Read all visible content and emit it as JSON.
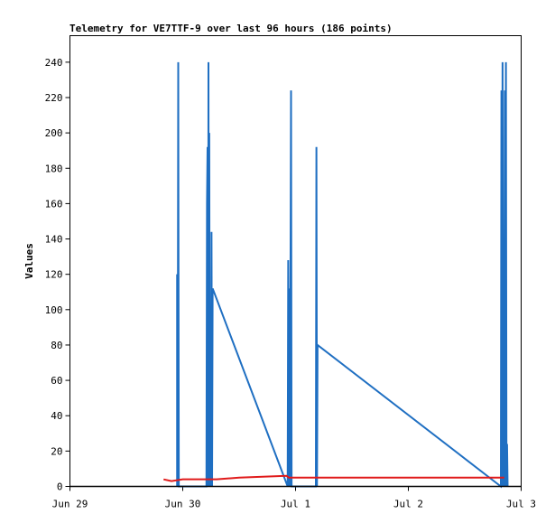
{
  "chart_data": {
    "type": "line",
    "title": "Telemetry for VE7TTF-9 over last 96 hours (186 points)",
    "xlabel": "",
    "ylabel": "Values",
    "xlim": [
      "Jun 29",
      "Jul 3"
    ],
    "ylim": [
      0,
      255
    ],
    "x_ticks": [
      {
        "label": "Jun 29",
        "day": 0
      },
      {
        "label": "Jun 30",
        "day": 1
      },
      {
        "label": "Jul 1",
        "day": 2
      },
      {
        "label": "Jul 2",
        "day": 3
      },
      {
        "label": "Jul 3",
        "day": 4
      }
    ],
    "y_ticks": [
      0,
      20,
      40,
      60,
      80,
      100,
      120,
      140,
      160,
      180,
      200,
      220,
      240
    ],
    "grid": false,
    "legend": "none",
    "series": [
      {
        "color": "#1f6fc2",
        "points": [
          [
            0.95,
            0
          ],
          [
            0.95,
            120
          ],
          [
            0.955,
            0
          ],
          [
            0.96,
            240
          ],
          [
            0.965,
            0
          ],
          [
            1.21,
            0
          ],
          [
            1.215,
            160
          ],
          [
            1.22,
            192
          ],
          [
            1.225,
            0
          ],
          [
            1.228,
            240
          ],
          [
            1.232,
            0
          ],
          [
            1.235,
            200
          ],
          [
            1.24,
            0
          ],
          [
            1.245,
            72
          ],
          [
            1.25,
            0
          ],
          [
            1.255,
            144
          ],
          [
            1.26,
            0
          ],
          [
            1.265,
            112
          ],
          [
            1.93,
            0
          ],
          [
            1.935,
            128
          ],
          [
            1.94,
            0
          ],
          [
            1.945,
            112
          ],
          [
            1.95,
            0
          ],
          [
            1.96,
            224
          ],
          [
            1.965,
            0
          ],
          [
            2.18,
            0
          ],
          [
            2.185,
            192
          ],
          [
            2.19,
            0
          ],
          [
            2.195,
            80
          ],
          [
            3.82,
            0
          ],
          [
            3.825,
            224
          ],
          [
            3.83,
            0
          ],
          [
            3.835,
            240
          ],
          [
            3.84,
            0
          ],
          [
            3.845,
            32
          ],
          [
            3.85,
            0
          ],
          [
            3.855,
            224
          ],
          [
            3.86,
            0
          ],
          [
            3.865,
            240
          ],
          [
            3.87,
            0
          ],
          [
            3.875,
            24
          ],
          [
            3.88,
            0
          ]
        ]
      },
      {
        "color": "#e01a1a",
        "points": [
          [
            0.83,
            4
          ],
          [
            0.9,
            3
          ],
          [
            1.0,
            4
          ],
          [
            1.3,
            4
          ],
          [
            1.5,
            5
          ],
          [
            1.92,
            6
          ],
          [
            1.94,
            5
          ],
          [
            2.2,
            5
          ],
          [
            3.0,
            5
          ],
          [
            3.85,
            5
          ]
        ]
      },
      {
        "color": "#000000",
        "points": [
          [
            0.0,
            0
          ],
          [
            4.0,
            0
          ]
        ]
      }
    ]
  }
}
